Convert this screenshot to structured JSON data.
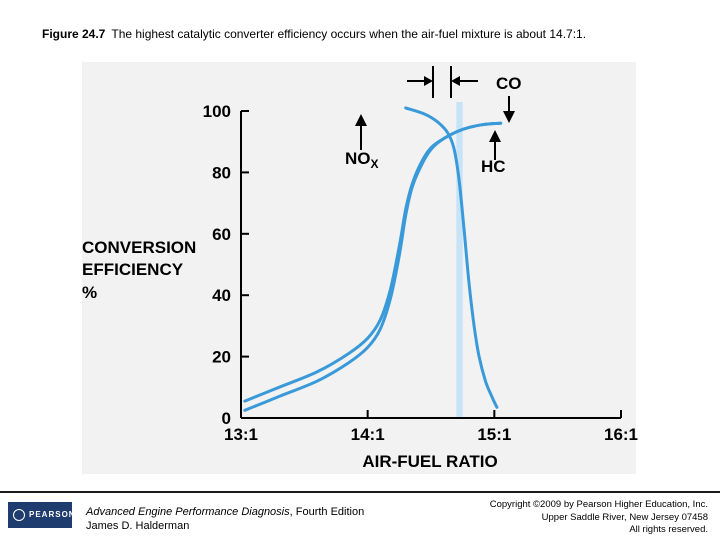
{
  "caption": {
    "figure_label": "Figure 24.7",
    "text": "The highest catalytic converter efficiency occurs when the air-fuel mixture is about 14.7:1."
  },
  "chart_data": {
    "type": "line",
    "title": "",
    "xlabel": "AIR-FUEL RATIO",
    "ylabel_lines": [
      "CONVERSION",
      "EFFICIENCY",
      "%"
    ],
    "x_ticks": [
      "13:1",
      "14:1",
      "15:1",
      "16:1"
    ],
    "x_tick_values": [
      13,
      14,
      15,
      16
    ],
    "xlim": [
      13,
      16
    ],
    "y_ticks": [
      "0",
      "20",
      "40",
      "60",
      "80",
      "100"
    ],
    "y_tick_values": [
      0,
      20,
      40,
      60,
      80,
      100
    ],
    "ylim": [
      0,
      100
    ],
    "optimal_band": [
      14.7,
      14.75
    ],
    "series": [
      {
        "name": "NOx",
        "points": [
          [
            14.3,
            101
          ],
          [
            14.45,
            99
          ],
          [
            14.55,
            96.5
          ],
          [
            14.63,
            93
          ],
          [
            14.68,
            88
          ],
          [
            14.72,
            78
          ],
          [
            14.76,
            62
          ],
          [
            14.8,
            44
          ],
          [
            14.84,
            30
          ],
          [
            14.88,
            20
          ],
          [
            14.93,
            12
          ],
          [
            14.98,
            7
          ],
          [
            15.02,
            3.5
          ]
        ]
      },
      {
        "name": "HC",
        "points": [
          [
            13.03,
            5.5
          ],
          [
            13.3,
            10
          ],
          [
            13.6,
            15
          ],
          [
            13.85,
            21
          ],
          [
            14.0,
            26
          ],
          [
            14.1,
            32
          ],
          [
            14.18,
            42
          ],
          [
            14.25,
            56
          ],
          [
            14.3,
            68
          ],
          [
            14.35,
            76
          ],
          [
            14.42,
            83
          ],
          [
            14.5,
            88
          ],
          [
            14.6,
            91
          ],
          [
            14.75,
            94
          ],
          [
            14.9,
            95.5
          ],
          [
            15.05,
            96
          ]
        ]
      },
      {
        "name": "CO",
        "points": [
          [
            13.03,
            2.5
          ],
          [
            13.3,
            7
          ],
          [
            13.6,
            12
          ],
          [
            13.85,
            18
          ],
          [
            14.0,
            23
          ],
          [
            14.1,
            29
          ],
          [
            14.18,
            39
          ],
          [
            14.25,
            53
          ],
          [
            14.3,
            66
          ],
          [
            14.35,
            75
          ],
          [
            14.42,
            82
          ],
          [
            14.5,
            87.5
          ],
          [
            14.6,
            91
          ],
          [
            14.75,
            94
          ],
          [
            14.9,
            95.5
          ],
          [
            15.05,
            96
          ]
        ]
      }
    ],
    "annotations": {
      "nox_label": "NO",
      "nox_subscript": "X",
      "hc_label": "HC",
      "co_label": "CO"
    },
    "colors": {
      "curve": "#3a9ad9",
      "band": "#c7e3f7",
      "text": "#000000"
    }
  },
  "footer": {
    "logo_text": "PEARSON",
    "book_title": "Advanced Engine Performance Diagnosis",
    "book_edition": ", Fourth Edition",
    "author": "James D. Halderman",
    "copyright_line1": "Copyright ©2009 by Pearson Higher Education, Inc.",
    "copyright_line2": "Upper Saddle River, New Jersey 07458",
    "copyright_line3": "All rights reserved."
  }
}
